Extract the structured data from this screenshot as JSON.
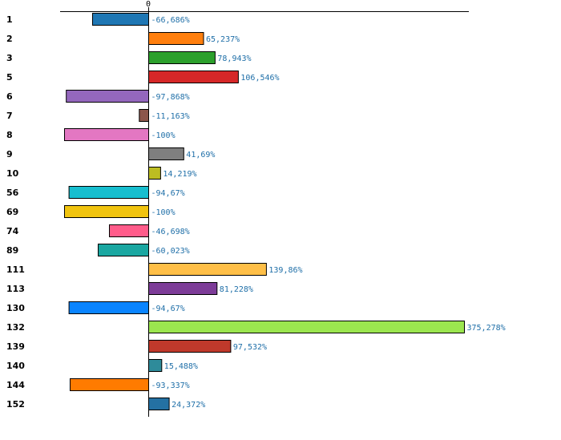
{
  "chart_data": {
    "type": "bar",
    "orientation": "horizontal",
    "title": "",
    "xlabel": "",
    "ylabel": "",
    "zero_tick_label": "0",
    "xlim": [
      -100,
      380
    ],
    "categories": [
      "1",
      "2",
      "3",
      "5",
      "6",
      "7",
      "8",
      "9",
      "10",
      "56",
      "69",
      "74",
      "89",
      "111",
      "113",
      "130",
      "132",
      "139",
      "140",
      "144",
      "152"
    ],
    "values": [
      -66.686,
      65.237,
      78.943,
      106.546,
      -97.868,
      -11.163,
      -100,
      41.69,
      14.219,
      -94.67,
      -100,
      -46.698,
      -60.023,
      139.86,
      81.228,
      -94.67,
      375.278,
      97.532,
      15.488,
      -93.337,
      24.372
    ],
    "value_labels": [
      "-66,686%",
      "65,237%",
      "78,943%",
      "106,546%",
      "-97,868%",
      "-11,163%",
      "-100%",
      "41,69%",
      "14,219%",
      "-94,67%",
      "-100%",
      "-46,698%",
      "-60,023%",
      "139,86%",
      "81,228%",
      "-94,67%",
      "375,278%",
      "97,532%",
      "15,488%",
      "-93,337%",
      "24,372%"
    ],
    "colors": [
      "#1f77b4",
      "#ff7f0e",
      "#2ca02c",
      "#d62728",
      "#9467bd",
      "#8c564b",
      "#e377c2",
      "#7f7f7f",
      "#bcbd22",
      "#17becf",
      "#f1c40f",
      "#ff5c8a",
      "#1aa7a1",
      "#ffbf47",
      "#7d3c98",
      "#0a84ff",
      "#9be64f",
      "#c0392b",
      "#2e8b9a",
      "#ff7b00",
      "#2471a3"
    ]
  }
}
